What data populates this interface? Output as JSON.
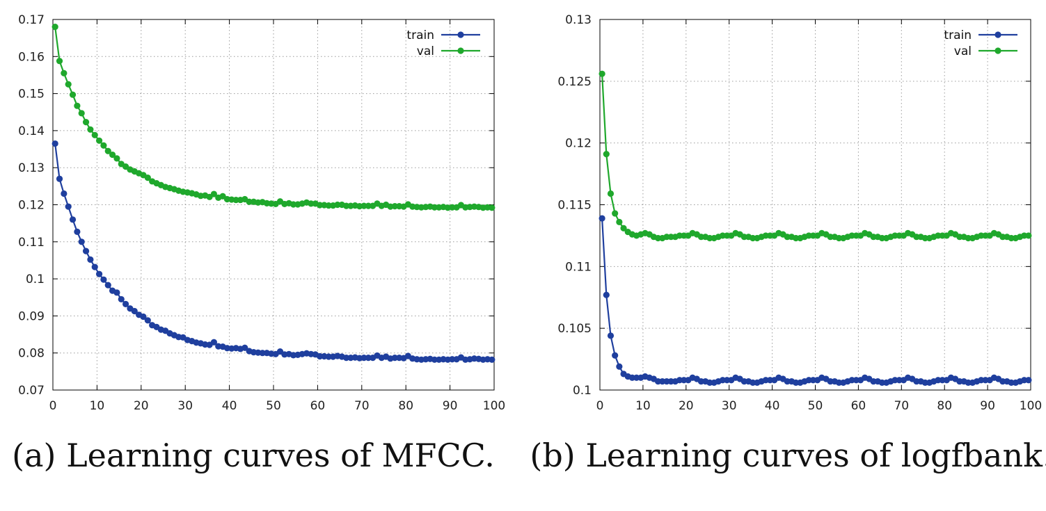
{
  "chart_data": [
    {
      "type": "line",
      "caption": "(a) Learning curves of MFCC.",
      "xlim": [
        0,
        100
      ],
      "ylim": [
        0.07,
        0.17
      ],
      "xticks": [
        0,
        10,
        20,
        30,
        40,
        50,
        60,
        70,
        80,
        90,
        100
      ],
      "yticks": [
        0.07,
        0.08,
        0.09,
        0.1,
        0.11,
        0.12,
        0.13,
        0.14,
        0.15,
        0.16,
        0.17
      ],
      "ytick_labels": [
        "0.07",
        "0.08",
        "0.09",
        "0.1",
        "0.11",
        "0.12",
        "0.13",
        "0.14",
        "0.15",
        "0.16",
        "0.17"
      ],
      "grid": true,
      "legend_position": "top-right",
      "series": [
        {
          "name": "train",
          "color": "#1f3f9e",
          "x": [
            0,
            1,
            2,
            3,
            4,
            5,
            6,
            7,
            8,
            9,
            10,
            11,
            12,
            13,
            14,
            15,
            16,
            17,
            18,
            19,
            20,
            21,
            22,
            23,
            24,
            25,
            26,
            27,
            28,
            29,
            30,
            31,
            32,
            33,
            34,
            35,
            36,
            37,
            38,
            39,
            40,
            41,
            42,
            43,
            44,
            45,
            46,
            47,
            48,
            49,
            50,
            51,
            52,
            53,
            54,
            55,
            56,
            57,
            58,
            59,
            60,
            61,
            62,
            63,
            64,
            65,
            66,
            67,
            68,
            69,
            70,
            71,
            72,
            73,
            74,
            75,
            76,
            77,
            78,
            79,
            80,
            81,
            82,
            83,
            84,
            85,
            86,
            87,
            88,
            89,
            90,
            91,
            92,
            93,
            94,
            95,
            96,
            97,
            98,
            99
          ],
          "values": [
            0.1365,
            0.127,
            0.123,
            0.1195,
            0.116,
            0.1127,
            0.11,
            0.1075,
            0.1052,
            0.1032,
            0.1013,
            0.0998,
            0.0983,
            0.0968,
            0.0963,
            0.0945,
            0.0932,
            0.092,
            0.0913,
            0.0903,
            0.0898,
            0.0888,
            0.0875,
            0.087,
            0.0863,
            0.086,
            0.0853,
            0.0848,
            0.0843,
            0.0842,
            0.0835,
            0.0832,
            0.0828,
            0.0826,
            0.0823,
            0.0822,
            0.0829,
            0.0818,
            0.0817,
            0.0813,
            0.0812,
            0.0813,
            0.0811,
            0.0814,
            0.0805,
            0.0802,
            0.0801,
            0.08,
            0.08,
            0.0798,
            0.0797,
            0.0804,
            0.0796,
            0.0797,
            0.0794,
            0.0795,
            0.0797,
            0.0799,
            0.0797,
            0.0796,
            0.0791,
            0.0791,
            0.079,
            0.079,
            0.0792,
            0.079,
            0.0787,
            0.0787,
            0.0788,
            0.0786,
            0.0787,
            0.0787,
            0.0787,
            0.0793,
            0.0787,
            0.079,
            0.0785,
            0.0787,
            0.0787,
            0.0786,
            0.0792,
            0.0785,
            0.0783,
            0.0782,
            0.0783,
            0.0784,
            0.0782,
            0.0782,
            0.0783,
            0.0782,
            0.0783,
            0.0783,
            0.0788,
            0.0782,
            0.0783,
            0.0785,
            0.0784,
            0.0782,
            0.0783,
            0.0782
          ]
        },
        {
          "name": "val",
          "color": "#1fa82c",
          "x": [
            0,
            1,
            2,
            3,
            4,
            5,
            6,
            7,
            8,
            9,
            10,
            11,
            12,
            13,
            14,
            15,
            16,
            17,
            18,
            19,
            20,
            21,
            22,
            23,
            24,
            25,
            26,
            27,
            28,
            29,
            30,
            31,
            32,
            33,
            34,
            35,
            36,
            37,
            38,
            39,
            40,
            41,
            42,
            43,
            44,
            45,
            46,
            47,
            48,
            49,
            50,
            51,
            52,
            53,
            54,
            55,
            56,
            57,
            58,
            59,
            60,
            61,
            62,
            63,
            64,
            65,
            66,
            67,
            68,
            69,
            70,
            71,
            72,
            73,
            74,
            75,
            76,
            77,
            78,
            79,
            80,
            81,
            82,
            83,
            84,
            85,
            86,
            87,
            88,
            89,
            90,
            91,
            92,
            93,
            94,
            95,
            96,
            97,
            98,
            99
          ],
          "values": [
            0.168,
            0.1588,
            0.1555,
            0.1525,
            0.1497,
            0.1467,
            0.1447,
            0.1423,
            0.1403,
            0.1388,
            0.1373,
            0.136,
            0.1345,
            0.1335,
            0.1325,
            0.131,
            0.1303,
            0.1295,
            0.129,
            0.1285,
            0.128,
            0.1273,
            0.1263,
            0.1258,
            0.1253,
            0.1248,
            0.1245,
            0.1242,
            0.1238,
            0.1235,
            0.1233,
            0.1231,
            0.1228,
            0.1224,
            0.1225,
            0.1221,
            0.1229,
            0.1219,
            0.1223,
            0.1215,
            0.1214,
            0.1213,
            0.1213,
            0.1215,
            0.1208,
            0.1208,
            0.1206,
            0.1207,
            0.1204,
            0.1203,
            0.1202,
            0.1209,
            0.1202,
            0.1204,
            0.1201,
            0.1201,
            0.1203,
            0.1206,
            0.1203,
            0.1203,
            0.1199,
            0.1199,
            0.1198,
            0.1198,
            0.12,
            0.12,
            0.1197,
            0.1197,
            0.1198,
            0.1196,
            0.1197,
            0.1197,
            0.1197,
            0.1203,
            0.1197,
            0.12,
            0.1195,
            0.1196,
            0.1196,
            0.1195,
            0.1201,
            0.1195,
            0.1194,
            0.1193,
            0.1194,
            0.1195,
            0.1193,
            0.1193,
            0.1194,
            0.1192,
            0.1193,
            0.1193,
            0.1199,
            0.1193,
            0.1194,
            0.1195,
            0.1194,
            0.1192,
            0.1193,
            0.1192
          ]
        }
      ]
    },
    {
      "type": "line",
      "caption": "(b) Learning curves of logfbank.",
      "xlim": [
        0,
        100
      ],
      "ylim": [
        0.1,
        0.13
      ],
      "xticks": [
        0,
        10,
        20,
        30,
        40,
        50,
        60,
        70,
        80,
        90,
        100
      ],
      "yticks": [
        0.1,
        0.105,
        0.11,
        0.115,
        0.12,
        0.125,
        0.13
      ],
      "ytick_labels": [
        "0.1",
        "0.105",
        "0.11",
        "0.115",
        "0.12",
        "0.125",
        "0.13"
      ],
      "grid": true,
      "legend_position": "top-right",
      "series": [
        {
          "name": "train",
          "color": "#1f3f9e",
          "x": [
            0,
            1,
            2,
            3,
            4,
            5,
            6,
            7,
            8,
            9,
            10,
            11,
            12,
            13,
            14,
            15,
            16,
            17,
            18,
            19,
            20,
            21,
            22,
            23,
            24,
            25,
            26,
            27,
            28,
            29,
            30,
            31,
            32,
            33,
            34,
            35,
            36,
            37,
            38,
            39,
            40,
            41,
            42,
            43,
            44,
            45,
            46,
            47,
            48,
            49,
            50,
            51,
            52,
            53,
            54,
            55,
            56,
            57,
            58,
            59,
            60,
            61,
            62,
            63,
            64,
            65,
            66,
            67,
            68,
            69,
            70,
            71,
            72,
            73,
            74,
            75,
            76,
            77,
            78,
            79,
            80,
            81,
            82,
            83,
            84,
            85,
            86,
            87,
            88,
            89,
            90,
            91,
            92,
            93,
            94,
            95,
            96,
            97,
            98,
            99
          ],
          "values": [
            0.1139,
            0.1077,
            0.1044,
            0.1028,
            0.1019,
            0.1013,
            0.1011,
            0.101,
            0.101,
            0.101,
            0.1011,
            0.101,
            0.1009,
            0.1007,
            0.1007,
            0.1007,
            0.1007,
            0.1007,
            0.1008,
            0.1008,
            0.1008,
            0.101,
            0.1009,
            0.1007,
            0.1007,
            0.1006,
            0.1006,
            0.1007,
            0.1008,
            0.1008,
            0.1008,
            0.101,
            0.1009,
            0.1007,
            0.1007,
            0.1006,
            0.1006,
            0.1007,
            0.1008,
            0.1008,
            0.1008,
            0.101,
            0.1009,
            0.1007,
            0.1007,
            0.1006,
            0.1006,
            0.1007,
            0.1008,
            0.1008,
            0.1008,
            0.101,
            0.1009,
            0.1007,
            0.1007,
            0.1006,
            0.1006,
            0.1007,
            0.1008,
            0.1008,
            0.1008,
            0.101,
            0.1009,
            0.1007,
            0.1007,
            0.1006,
            0.1006,
            0.1007,
            0.1008,
            0.1008,
            0.1008,
            0.101,
            0.1009,
            0.1007,
            0.1007,
            0.1006,
            0.1006,
            0.1007,
            0.1008,
            0.1008,
            0.1008,
            0.101,
            0.1009,
            0.1007,
            0.1007,
            0.1006,
            0.1006,
            0.1007,
            0.1008,
            0.1008,
            0.1008,
            0.101,
            0.1009,
            0.1007,
            0.1007,
            0.1006,
            0.1006,
            0.1007,
            0.1008,
            0.1008
          ]
        },
        {
          "name": "val",
          "color": "#1fa82c",
          "x": [
            0,
            1,
            2,
            3,
            4,
            5,
            6,
            7,
            8,
            9,
            10,
            11,
            12,
            13,
            14,
            15,
            16,
            17,
            18,
            19,
            20,
            21,
            22,
            23,
            24,
            25,
            26,
            27,
            28,
            29,
            30,
            31,
            32,
            33,
            34,
            35,
            36,
            37,
            38,
            39,
            40,
            41,
            42,
            43,
            44,
            45,
            46,
            47,
            48,
            49,
            50,
            51,
            52,
            53,
            54,
            55,
            56,
            57,
            58,
            59,
            60,
            61,
            62,
            63,
            64,
            65,
            66,
            67,
            68,
            69,
            70,
            71,
            72,
            73,
            74,
            75,
            76,
            77,
            78,
            79,
            80,
            81,
            82,
            83,
            84,
            85,
            86,
            87,
            88,
            89,
            90,
            91,
            92,
            93,
            94,
            95,
            96,
            97,
            98,
            99
          ],
          "values": [
            0.1256,
            0.1191,
            0.1159,
            0.1143,
            0.1136,
            0.1131,
            0.1128,
            0.1126,
            0.1125,
            0.1126,
            0.1127,
            0.1126,
            0.1124,
            0.1123,
            0.1123,
            0.1124,
            0.1124,
            0.1124,
            0.1125,
            0.1125,
            0.1125,
            0.1127,
            0.1126,
            0.1124,
            0.1124,
            0.1123,
            0.1123,
            0.1124,
            0.1125,
            0.1125,
            0.1125,
            0.1127,
            0.1126,
            0.1124,
            0.1124,
            0.1123,
            0.1123,
            0.1124,
            0.1125,
            0.1125,
            0.1125,
            0.1127,
            0.1126,
            0.1124,
            0.1124,
            0.1123,
            0.1123,
            0.1124,
            0.1125,
            0.1125,
            0.1125,
            0.1127,
            0.1126,
            0.1124,
            0.1124,
            0.1123,
            0.1123,
            0.1124,
            0.1125,
            0.1125,
            0.1125,
            0.1127,
            0.1126,
            0.1124,
            0.1124,
            0.1123,
            0.1123,
            0.1124,
            0.1125,
            0.1125,
            0.1125,
            0.1127,
            0.1126,
            0.1124,
            0.1124,
            0.1123,
            0.1123,
            0.1124,
            0.1125,
            0.1125,
            0.1125,
            0.1127,
            0.1126,
            0.1124,
            0.1124,
            0.1123,
            0.1123,
            0.1124,
            0.1125,
            0.1125,
            0.1125,
            0.1127,
            0.1126,
            0.1124,
            0.1124,
            0.1123,
            0.1123,
            0.1124,
            0.1125,
            0.1125
          ]
        }
      ]
    }
  ]
}
